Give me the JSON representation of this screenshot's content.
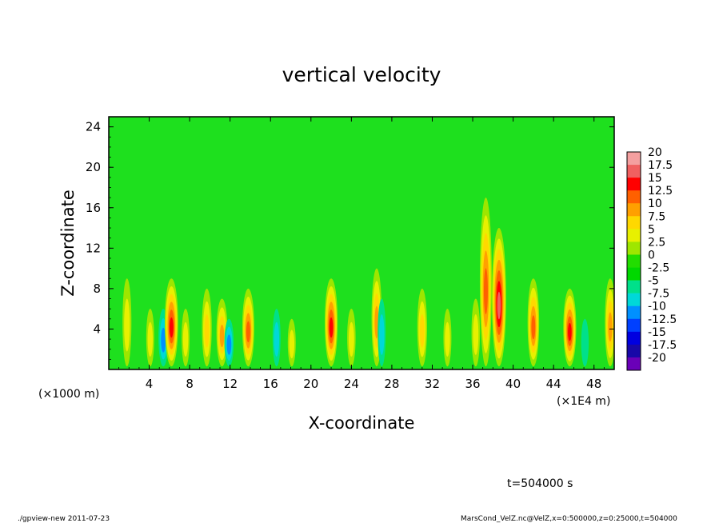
{
  "chart_data": {
    "type": "heatmap",
    "title": "vertical velocity",
    "xlabel": "X-coordinate",
    "ylabel": "Z-coordinate",
    "x_unit_left": "(×1000 m)",
    "x_unit_right": "(×1E4 m)",
    "x_ticks": [
      "4",
      "8",
      "12",
      "16",
      "20",
      "24",
      "28",
      "32",
      "36",
      "40",
      "44",
      "48"
    ],
    "y_ticks": [
      "4",
      "8",
      "12",
      "16",
      "20",
      "24"
    ],
    "xlim": [
      0,
      50
    ],
    "ylim": [
      0,
      25
    ],
    "colorbar": {
      "labels": [
        "20",
        "17.5",
        "15",
        "12.5",
        "10",
        "7.5",
        "5",
        "2.5",
        "0",
        "-2.5",
        "-5",
        "-7.5",
        "-10",
        "-12.5",
        "-15",
        "-17.5",
        "-20"
      ],
      "colors": [
        "#f4a0a0",
        "#f06060",
        "#ff0000",
        "#ff6000",
        "#ffa000",
        "#ffd800",
        "#e8f000",
        "#9ee600",
        "#22dd00",
        "#00d800",
        "#00e08a",
        "#00d8d8",
        "#0090ff",
        "#0040ff",
        "#0000e0",
        "#1808a8",
        "#6a00b8"
      ]
    },
    "background_color": "#1ee01e",
    "features": [
      {
        "x": 1.8,
        "z_top": 9,
        "peak": 7
      },
      {
        "x": 4.1,
        "z_top": 6,
        "peak": 5
      },
      {
        "x": 5.4,
        "z_top": 6,
        "peak": -9
      },
      {
        "x": 6.2,
        "z_top": 9,
        "peak": 17
      },
      {
        "x": 7.6,
        "z_top": 6,
        "peak": 5
      },
      {
        "x": 9.7,
        "z_top": 8,
        "peak": 9
      },
      {
        "x": 11.2,
        "z_top": 7,
        "peak": 12
      },
      {
        "x": 11.9,
        "z_top": 5,
        "peak": -8
      },
      {
        "x": 13.8,
        "z_top": 8,
        "peak": 14
      },
      {
        "x": 16.6,
        "z_top": 6,
        "peak": -5
      },
      {
        "x": 18.1,
        "z_top": 5,
        "peak": 5
      },
      {
        "x": 22.0,
        "z_top": 9,
        "peak": 16
      },
      {
        "x": 24.0,
        "z_top": 6,
        "peak": 6
      },
      {
        "x": 26.5,
        "z_top": 10,
        "peak": 10
      },
      {
        "x": 27.0,
        "z_top": 7,
        "peak": -5
      },
      {
        "x": 31.0,
        "z_top": 8,
        "peak": 9
      },
      {
        "x": 33.5,
        "z_top": 6,
        "peak": 5
      },
      {
        "x": 36.3,
        "z_top": 7,
        "peak": 6
      },
      {
        "x": 37.3,
        "z_top": 17,
        "peak": 14
      },
      {
        "x": 38.6,
        "z_top": 14,
        "peak": 19
      },
      {
        "x": 42.0,
        "z_top": 9,
        "peak": 13
      },
      {
        "x": 45.6,
        "z_top": 8,
        "peak": 16
      },
      {
        "x": 47.1,
        "z_top": 5,
        "peak": -4
      },
      {
        "x": 49.6,
        "z_top": 9,
        "peak": 11
      }
    ]
  },
  "footer": {
    "time_label": "t=504000 s",
    "program_label": "./gpview-new   2011-07-23",
    "source_label": "MarsCond_VelZ.nc@VelZ,x=0:500000,z=0:25000,t=504000"
  }
}
